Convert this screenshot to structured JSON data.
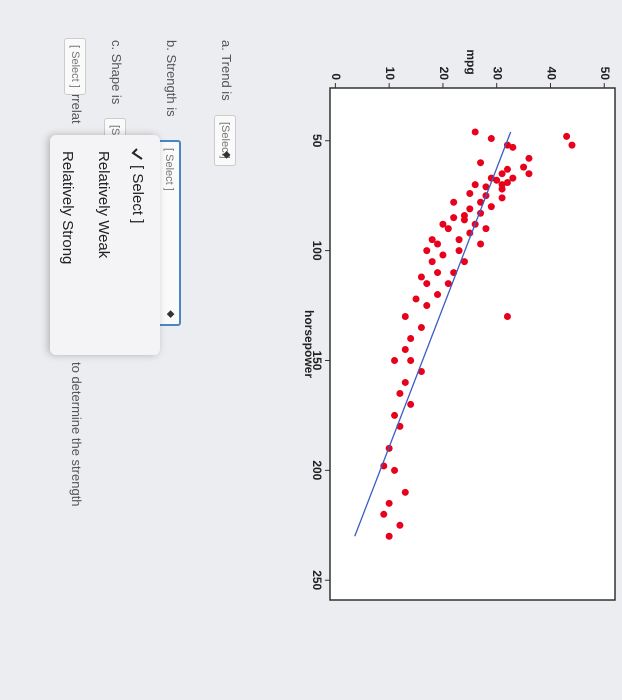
{
  "chart_data": {
    "type": "scatter",
    "xlabel": "horsepower",
    "ylabel": "mpg",
    "x": [
      46,
      48,
      49,
      52,
      52,
      53,
      58,
      60,
      62,
      63,
      65,
      65,
      67,
      67,
      68,
      69,
      70,
      70,
      71,
      72,
      74,
      75,
      76,
      78,
      78,
      80,
      81,
      83,
      84,
      85,
      86,
      88,
      88,
      90,
      90,
      92,
      95,
      95,
      97,
      97,
      100,
      100,
      102,
      105,
      105,
      110,
      110,
      112,
      115,
      115,
      120,
      122,
      125,
      130,
      135,
      140,
      145,
      150,
      150,
      155,
      160,
      165,
      170,
      175,
      180,
      190,
      198,
      200,
      210,
      215,
      220,
      225,
      230,
      130
    ],
    "values": [
      26,
      43,
      29,
      32,
      44,
      33,
      36,
      27,
      35,
      32,
      36,
      31,
      29,
      33,
      30,
      32,
      26,
      31,
      28,
      31,
      25,
      28,
      31,
      22,
      27,
      29,
      25,
      27,
      24,
      22,
      24,
      20,
      26,
      21,
      28,
      25,
      18,
      23,
      19,
      27,
      17,
      23,
      20,
      18,
      24,
      19,
      22,
      16,
      21,
      17,
      19,
      15,
      17,
      13,
      16,
      14,
      13,
      14,
      11,
      16,
      13,
      12,
      14,
      11,
      12,
      10,
      9,
      11,
      13,
      10,
      9,
      12,
      10,
      32
    ],
    "color": "#e8001c",
    "fit_line": {
      "x": [
        46,
        230
      ],
      "values": [
        32.6,
        3.6
      ],
      "color": "#3b5cc4"
    },
    "xlim": [
      26,
      259
    ],
    "ylim": [
      -1,
      52
    ],
    "xticks": [
      50,
      100,
      150,
      200,
      250
    ],
    "yticks": [
      0,
      10,
      20,
      30,
      40,
      50
    ]
  },
  "quiz": {
    "questions": [
      {
        "label": "a. Trend is",
        "select": "[Select]"
      },
      {
        "label": "b. Strength is",
        "select": "[ Select ]"
      },
      {
        "label": "c. Shape is",
        "select": "[S"
      },
      {
        "label": "d. The correlat",
        "select": "[ Select ]"
      }
    ],
    "note": "to determine the strength",
    "dropdown": [
      "[ Select ]",
      "Relatively Weak",
      "Relatively Strong"
    ]
  }
}
